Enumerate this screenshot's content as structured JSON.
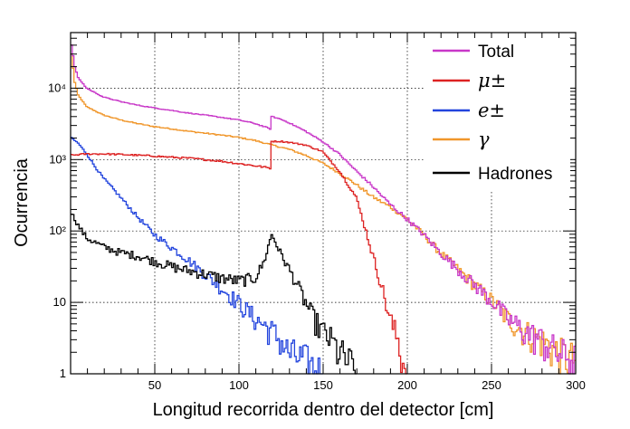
{
  "chart_data": {
    "type": "line",
    "xlabel": "Longitud recorrida dentro del detector [cm]",
    "ylabel": "Ocurrencia",
    "xlim": [
      0,
      300
    ],
    "ylim": [
      1,
      60000
    ],
    "yscale": "log",
    "grid": true,
    "legend_position": "top-right",
    "x_ticks": [
      50,
      100,
      150,
      200,
      250,
      300
    ],
    "y_ticks": [
      {
        "value": 1,
        "label": "1"
      },
      {
        "value": 10,
        "label": "10"
      },
      {
        "value": 100,
        "label": "10²"
      },
      {
        "value": 1000,
        "label": "10³"
      },
      {
        "value": 10000,
        "label": "10⁴"
      }
    ],
    "series": [
      {
        "name": "Total",
        "color": "#c837c8",
        "x": [
          1,
          3,
          5,
          10,
          20,
          30,
          40,
          50,
          60,
          70,
          80,
          90,
          100,
          110,
          119,
          120,
          125,
          130,
          140,
          150,
          160,
          170,
          180,
          190,
          200,
          210,
          220,
          230,
          240,
          250,
          260,
          270,
          280,
          290,
          300
        ],
        "y": [
          40000,
          20000,
          14000,
          10000,
          7500,
          6500,
          5800,
          5300,
          4900,
          4500,
          4200,
          3900,
          3600,
          3200,
          2700,
          4000,
          3700,
          3300,
          2500,
          1800,
          1200,
          700,
          420,
          240,
          150,
          90,
          50,
          30,
          18,
          11,
          6,
          4,
          3,
          2,
          1.6
        ]
      },
      {
        "name": "μ±",
        "color": "#dd2222",
        "x": [
          1,
          10,
          20,
          30,
          40,
          50,
          60,
          70,
          80,
          90,
          100,
          110,
          119,
          120,
          125,
          130,
          140,
          150,
          160,
          170,
          175,
          180,
          185,
          190,
          195,
          200
        ],
        "y": [
          1150,
          1200,
          1200,
          1180,
          1150,
          1120,
          1080,
          1050,
          1000,
          950,
          880,
          820,
          760,
          1800,
          1800,
          1750,
          1600,
          1300,
          700,
          300,
          120,
          45,
          18,
          6,
          3,
          1
        ]
      },
      {
        "name": "e±",
        "color": "#2244dd",
        "x": [
          1,
          5,
          10,
          15,
          20,
          30,
          40,
          50,
          60,
          70,
          80,
          90,
          100,
          110,
          120,
          125,
          130,
          140,
          145,
          150
        ],
        "y": [
          2000,
          1700,
          1200,
          800,
          550,
          300,
          160,
          90,
          60,
          40,
          25,
          16,
          10,
          6,
          4,
          3,
          2,
          1.5,
          1.2,
          1
        ]
      },
      {
        "name": "γ",
        "color": "#f0962a",
        "x": [
          1,
          3,
          5,
          10,
          20,
          30,
          40,
          50,
          60,
          70,
          80,
          90,
          100,
          110,
          120,
          130,
          140,
          150,
          160,
          170,
          180,
          190,
          200,
          210,
          220,
          230,
          240,
          250,
          260,
          270,
          280,
          290,
          300
        ],
        "y": [
          30000,
          12000,
          8000,
          5500,
          4200,
          3600,
          3200,
          2900,
          2700,
          2500,
          2350,
          2200,
          2050,
          1850,
          1600,
          1400,
          1150,
          900,
          650,
          450,
          300,
          220,
          150,
          90,
          50,
          30,
          18,
          11,
          6,
          4,
          3,
          2,
          1.6
        ]
      },
      {
        "name": "Hadrones",
        "color": "#000000",
        "x": [
          1,
          5,
          10,
          20,
          30,
          40,
          50,
          60,
          70,
          80,
          90,
          100,
          110,
          115,
          120,
          125,
          130,
          135,
          140,
          145,
          150,
          155,
          160,
          165,
          170
        ],
        "y": [
          180,
          120,
          80,
          60,
          50,
          45,
          38,
          32,
          28,
          25,
          22,
          20,
          22,
          35,
          90,
          50,
          30,
          18,
          10,
          6,
          4,
          3,
          2,
          1.5,
          1
        ]
      }
    ]
  }
}
